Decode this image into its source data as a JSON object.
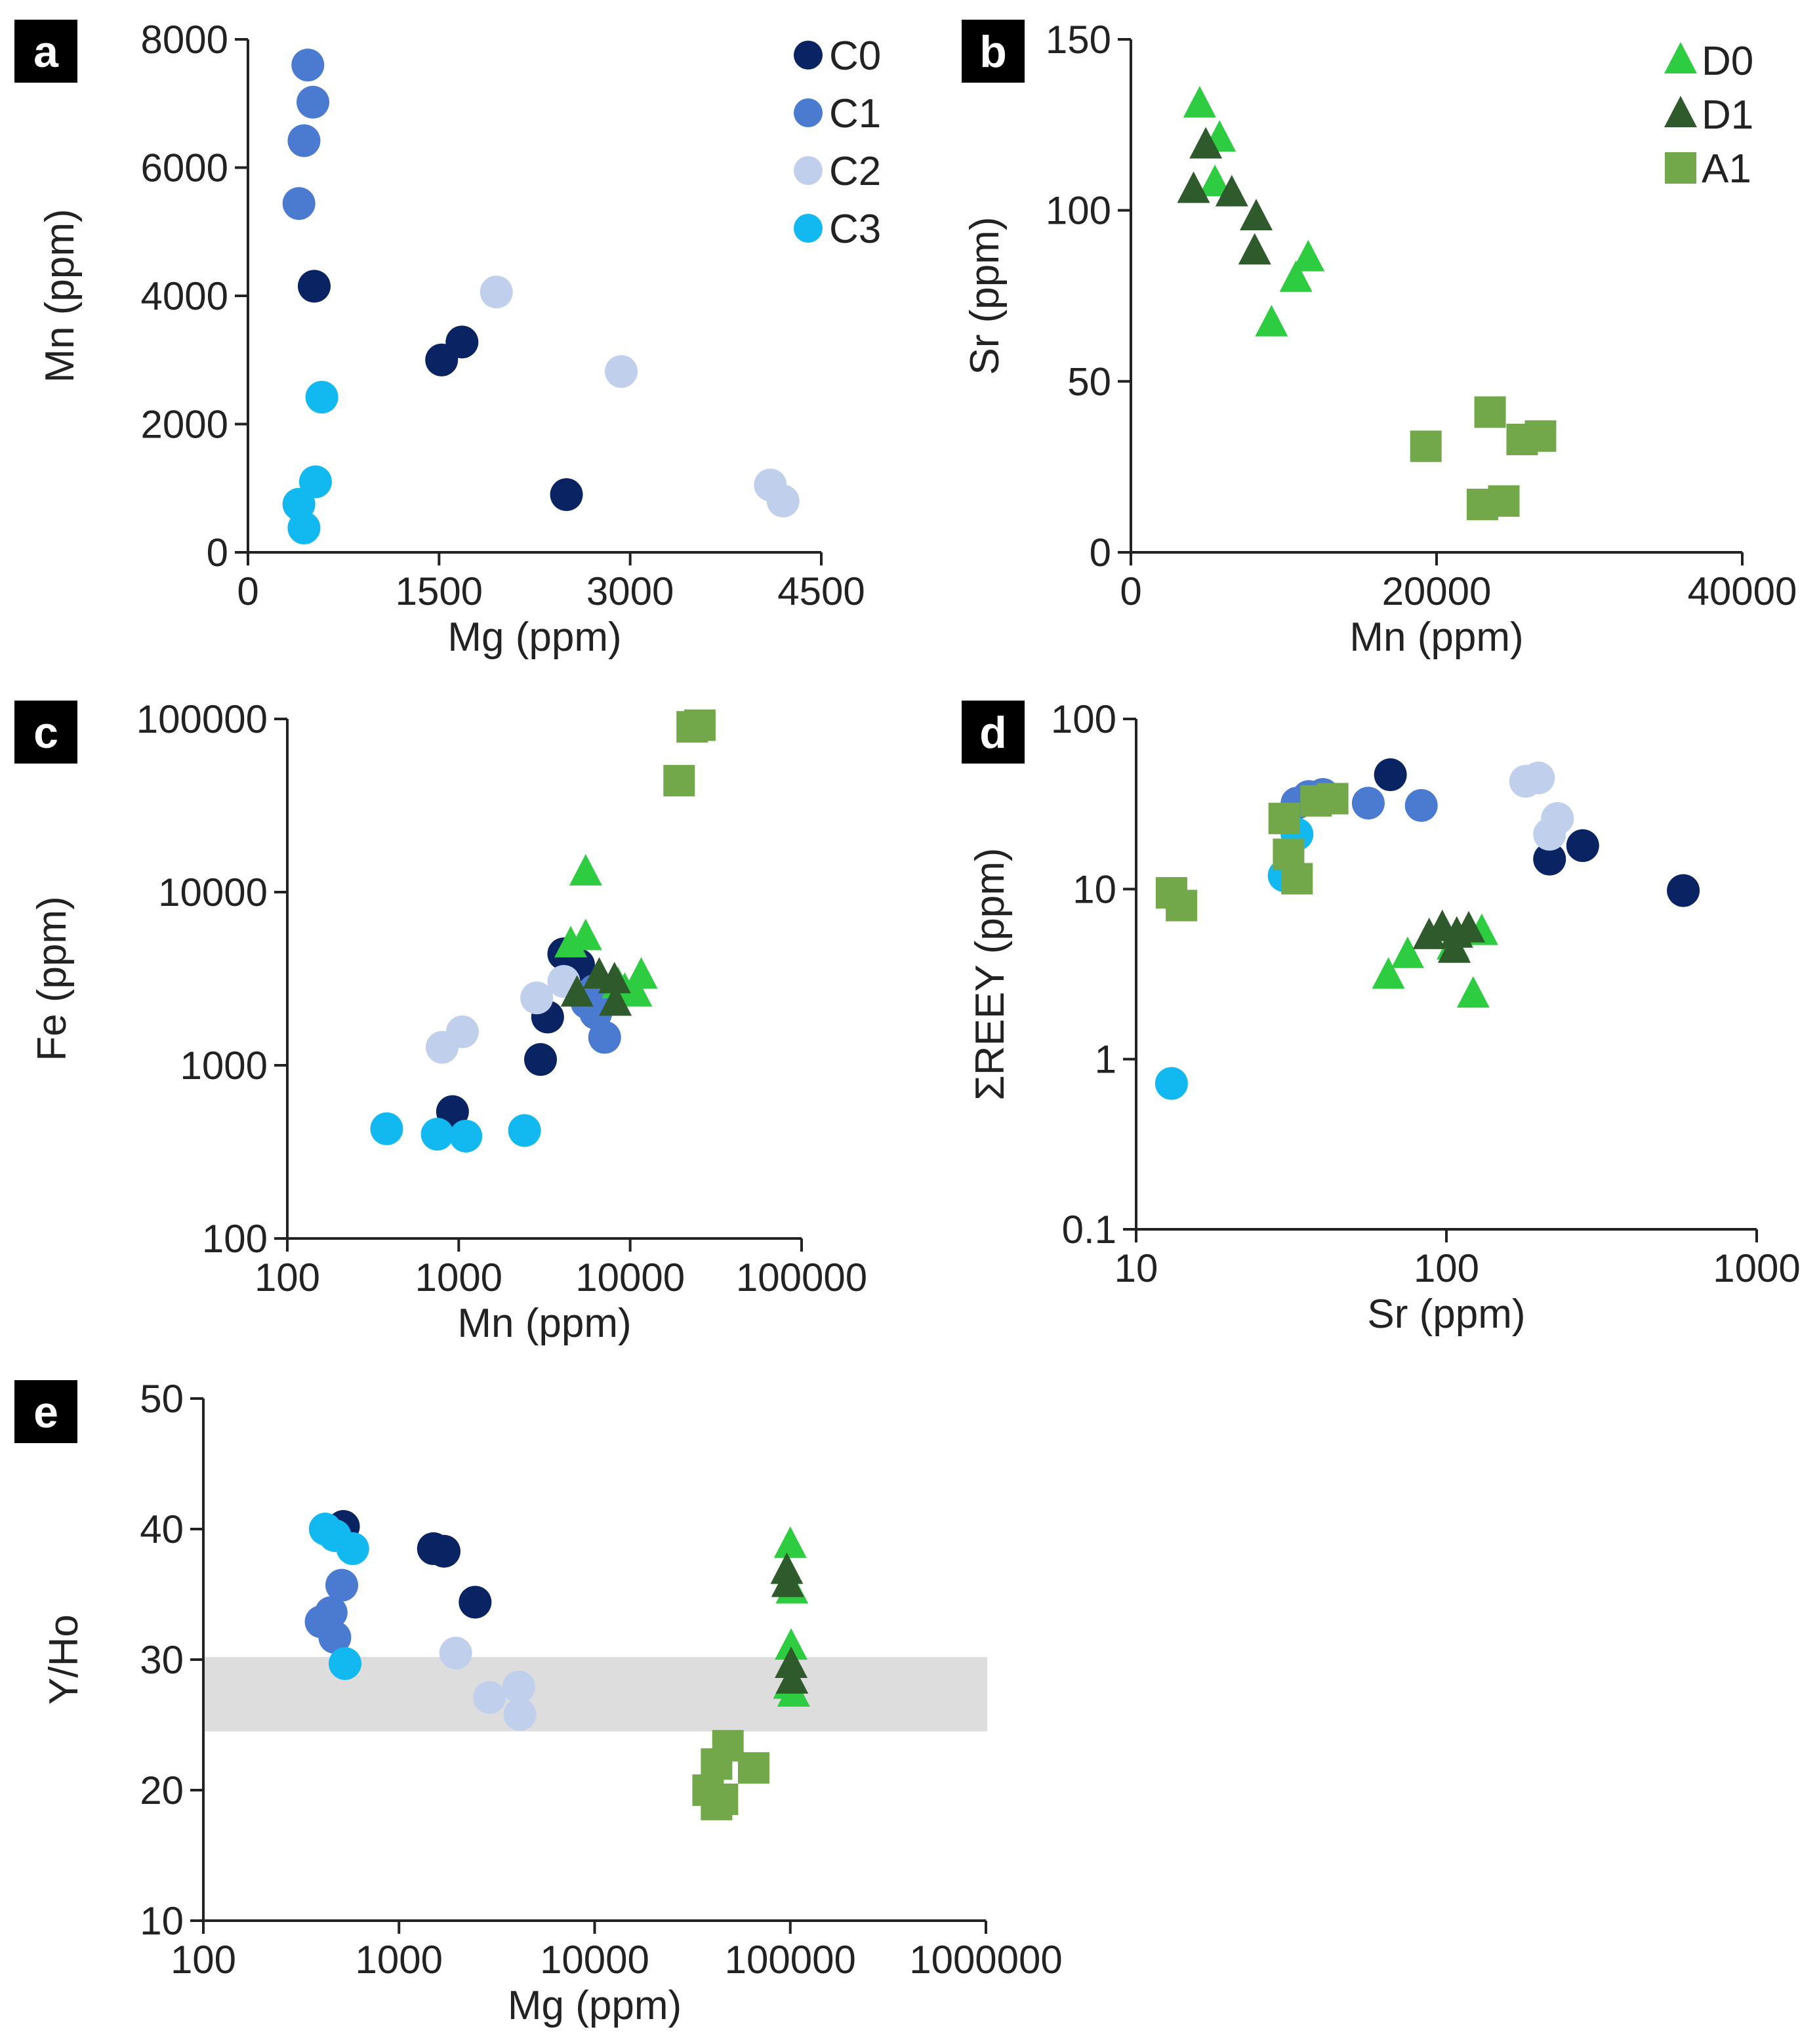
{
  "colors": {
    "C0": "#0a2463",
    "C1": "#4a7bd0",
    "C2": "#c0d0ec",
    "C3": "#12b8f0",
    "D0": "#2ecc40",
    "D1": "#2f5a2b",
    "A1": "#72a84a",
    "band": "#d9d9d9",
    "axis": "#222222"
  },
  "chart_data": [
    {
      "id": "a",
      "label": "a",
      "type": "scatter",
      "xlabel": "Mg (ppm)",
      "ylabel": "Mn (ppm)",
      "xscale": "linear",
      "yscale": "linear",
      "xlim": [
        0,
        4500
      ],
      "ylim": [
        0,
        8000
      ],
      "xticks": [
        0,
        1500,
        3000,
        4500
      ],
      "xtick_labels": [
        "0",
        "1500",
        "3000",
        "4500"
      ],
      "yticks": [
        0,
        2000,
        4000,
        6000,
        8000
      ],
      "ytick_labels": [
        "0",
        "2000",
        "4000",
        "6000",
        "8000"
      ],
      "legend": [
        "C0",
        "C1",
        "C2",
        "C3"
      ],
      "legend_position": "top-right",
      "series": [
        {
          "name": "C0",
          "marker": "circle",
          "points": [
            [
              520,
              4150
            ],
            [
              1520,
              3000
            ],
            [
              1680,
              3280
            ],
            [
              2500,
              900
            ]
          ]
        },
        {
          "name": "C1",
          "marker": "circle",
          "points": [
            [
              470,
              7600
            ],
            [
              510,
              7020
            ],
            [
              440,
              6420
            ],
            [
              400,
              5440
            ]
          ]
        },
        {
          "name": "C2",
          "marker": "circle",
          "points": [
            [
              1950,
              4060
            ],
            [
              2930,
              2820
            ],
            [
              4100,
              1050
            ],
            [
              4200,
              800
            ]
          ]
        },
        {
          "name": "C3",
          "marker": "circle",
          "points": [
            [
              580,
              2420
            ],
            [
              530,
              1100
            ],
            [
              400,
              750
            ],
            [
              440,
              380
            ]
          ]
        }
      ]
    },
    {
      "id": "b",
      "label": "b",
      "type": "scatter",
      "xlabel": "Mn (ppm)",
      "ylabel": "Sr (ppm)",
      "xscale": "linear",
      "yscale": "linear",
      "xlim": [
        0,
        40000
      ],
      "ylim": [
        0,
        150
      ],
      "xticks": [
        0,
        20000,
        40000
      ],
      "xtick_labels": [
        "0",
        "20000",
        "40000"
      ],
      "yticks": [
        0,
        50,
        100,
        150
      ],
      "ytick_labels": [
        "0",
        "50",
        "100",
        "150"
      ],
      "legend": [
        "D0",
        "D1",
        "A1"
      ],
      "legend_position": "top-right",
      "series": [
        {
          "name": "D0",
          "marker": "triangle",
          "points": [
            [
              4500,
              131
            ],
            [
              5800,
              121
            ],
            [
              5500,
              108
            ],
            [
              10800,
              80
            ],
            [
              11600,
              86
            ],
            [
              9200,
              67
            ]
          ]
        },
        {
          "name": "D1",
          "marker": "triangle",
          "points": [
            [
              4900,
              119
            ],
            [
              4100,
              106
            ],
            [
              6600,
              105
            ],
            [
              8200,
              98
            ],
            [
              8100,
              88
            ]
          ]
        },
        {
          "name": "A1",
          "marker": "square",
          "points": [
            [
              19300,
              31
            ],
            [
              23500,
              41
            ],
            [
              25600,
              33
            ],
            [
              26800,
              34
            ],
            [
              23000,
              14
            ],
            [
              24400,
              15
            ]
          ]
        }
      ]
    },
    {
      "id": "c",
      "label": "c",
      "type": "scatter",
      "xlabel": "Mn (ppm)",
      "ylabel": "Fe (ppm)",
      "xscale": "log",
      "yscale": "log",
      "xlim": [
        100,
        100000
      ],
      "ylim": [
        100,
        100000
      ],
      "xticks": [
        100,
        1000,
        10000,
        100000
      ],
      "xtick_labels": [
        "100",
        "1000",
        "10000",
        "100000"
      ],
      "yticks": [
        100,
        1000,
        10000,
        100000
      ],
      "ytick_labels": [
        "100",
        "1000",
        "10000",
        "100000"
      ],
      "legend": [],
      "series": [
        {
          "name": "C0",
          "marker": "circle",
          "points": [
            [
              920,
              540
            ],
            [
              3000,
              1080
            ],
            [
              3300,
              1900
            ],
            [
              4100,
              4400
            ],
            [
              5000,
              3800
            ]
          ]
        },
        {
          "name": "C1",
          "marker": "circle",
          "points": [
            [
              5600,
              2300
            ],
            [
              6300,
              2000
            ],
            [
              7100,
              1450
            ],
            [
              6200,
              2700
            ]
          ]
        },
        {
          "name": "C2",
          "marker": "circle",
          "points": [
            [
              800,
              1270
            ],
            [
              1050,
              1560
            ],
            [
              2850,
              2450
            ],
            [
              4100,
              3050
            ]
          ]
        },
        {
          "name": "C3",
          "marker": "circle",
          "points": [
            [
              380,
              430
            ],
            [
              750,
              400
            ],
            [
              1100,
              390
            ],
            [
              2420,
              420
            ]
          ]
        },
        {
          "name": "D0",
          "marker": "triangle",
          "points": [
            [
              5500,
              13000
            ],
            [
              4500,
              5000
            ],
            [
              5500,
              5500
            ],
            [
              9300,
              2700
            ],
            [
              10800,
              2600
            ],
            [
              11600,
              3300
            ],
            [
              8500,
              2900
            ]
          ]
        },
        {
          "name": "D1",
          "marker": "triangle",
          "points": [
            [
              4900,
              2600
            ],
            [
              6600,
              3300
            ],
            [
              8100,
              3100
            ],
            [
              8200,
              2300
            ]
          ]
        },
        {
          "name": "A1",
          "marker": "square",
          "points": [
            [
              19300,
              44000
            ],
            [
              23000,
              90000
            ],
            [
              25500,
              92000
            ]
          ]
        }
      ]
    },
    {
      "id": "d",
      "label": "d",
      "type": "scatter",
      "xlabel": "Sr (ppm)",
      "ylabel": "ΣREEY (ppm)",
      "xscale": "log",
      "yscale": "log",
      "xlim": [
        10,
        1000
      ],
      "ylim": [
        0.1,
        100
      ],
      "xticks": [
        10,
        100,
        1000
      ],
      "xtick_labels": [
        "10",
        "100",
        "1000"
      ],
      "yticks": [
        0.1,
        1,
        10,
        100
      ],
      "ytick_labels": [
        "0.1",
        "1",
        "10",
        "100"
      ],
      "legend": [],
      "series": [
        {
          "name": "C0",
          "marker": "circle",
          "points": [
            [
              66,
              47
            ],
            [
              215,
              15
            ],
            [
              275,
              18
            ],
            [
              580,
              9.8
            ]
          ]
        },
        {
          "name": "C1",
          "marker": "circle",
          "points": [
            [
              33,
              32
            ],
            [
              36,
              35
            ],
            [
              40,
              36
            ],
            [
              56,
              32
            ],
            [
              83,
              31
            ]
          ]
        },
        {
          "name": "C2",
          "marker": "circle",
          "points": [
            [
              180,
              43
            ],
            [
              198,
              45
            ],
            [
              215,
              21
            ],
            [
              228,
              26
            ]
          ]
        },
        {
          "name": "C3",
          "marker": "circle",
          "points": [
            [
              13,
              0.72
            ],
            [
              30,
              12
            ],
            [
              33,
              21
            ]
          ]
        },
        {
          "name": "D0",
          "marker": "triangle",
          "points": [
            [
              65,
              3.1
            ],
            [
              75,
              4.1
            ],
            [
              122,
              2.4
            ],
            [
              130,
              5.6
            ],
            [
              105,
              4.6
            ]
          ]
        },
        {
          "name": "D1",
          "marker": "triangle",
          "points": [
            [
              88,
              5.3
            ],
            [
              97,
              5.9
            ],
            [
              108,
              5.4
            ],
            [
              118,
              5.8
            ],
            [
              106,
              4.4
            ]
          ]
        },
        {
          "name": "A1",
          "marker": "square",
          "points": [
            [
              13,
              9.5
            ],
            [
              14,
              8
            ],
            [
              30,
              26
            ],
            [
              31,
              16
            ],
            [
              33,
              11.5
            ],
            [
              38,
              33
            ],
            [
              43,
              34
            ]
          ]
        }
      ]
    },
    {
      "id": "e",
      "label": "e",
      "type": "scatter",
      "xlabel": "Mg (ppm)",
      "ylabel": "Y/Ho",
      "xscale": "log",
      "yscale": "linear",
      "xlim": [
        100,
        1000000
      ],
      "ylim": [
        10,
        50
      ],
      "xticks": [
        100,
        1000,
        10000,
        100000,
        1000000
      ],
      "xtick_labels": [
        "100",
        "1000",
        "10000",
        "100000",
        "1000000"
      ],
      "yticks": [
        10,
        20,
        30,
        40,
        50
      ],
      "ytick_labels": [
        "10",
        "20",
        "30",
        "40",
        "50"
      ],
      "legend": [],
      "band": {
        "y_from": 24.5,
        "y_to": 30.2
      },
      "series": [
        {
          "name": "C0",
          "marker": "circle",
          "points": [
            [
              520,
              40.2
            ],
            [
              1500,
              38.5
            ],
            [
              1700,
              38.3
            ],
            [
              2450,
              34.4
            ]
          ]
        },
        {
          "name": "C1",
          "marker": "circle",
          "points": [
            [
              400,
              32.9
            ],
            [
              450,
              33.6
            ],
            [
              470,
              31.7
            ],
            [
              510,
              35.7
            ]
          ]
        },
        {
          "name": "C2",
          "marker": "circle",
          "points": [
            [
              1950,
              30.5
            ],
            [
              2900,
              27.1
            ],
            [
              4100,
              27.9
            ],
            [
              4150,
              25.8
            ]
          ]
        },
        {
          "name": "C3",
          "marker": "circle",
          "points": [
            [
              420,
              40.0
            ],
            [
              470,
              39.5
            ],
            [
              580,
              38.5
            ],
            [
              530,
              29.7
            ]
          ]
        },
        {
          "name": "D0",
          "marker": "triangle",
          "points": [
            [
              100000,
              38.8
            ],
            [
              102000,
              35.3
            ],
            [
              101000,
              31.0
            ],
            [
              99000,
              28.0
            ],
            [
              104000,
              27.4
            ]
          ]
        },
        {
          "name": "D1",
          "marker": "triangle",
          "points": [
            [
              96000,
              36.8
            ],
            [
              97000,
              35.8
            ],
            [
              101000,
              29.6
            ],
            [
              102000,
              28.4
            ]
          ]
        },
        {
          "name": "A1",
          "marker": "square",
          "points": [
            [
              42000,
              22.0
            ],
            [
              48000,
              23.4
            ],
            [
              65000,
              21.7
            ],
            [
              38000,
              20.0
            ],
            [
              45000,
              19.3
            ],
            [
              42000,
              18.9
            ]
          ]
        }
      ]
    }
  ]
}
